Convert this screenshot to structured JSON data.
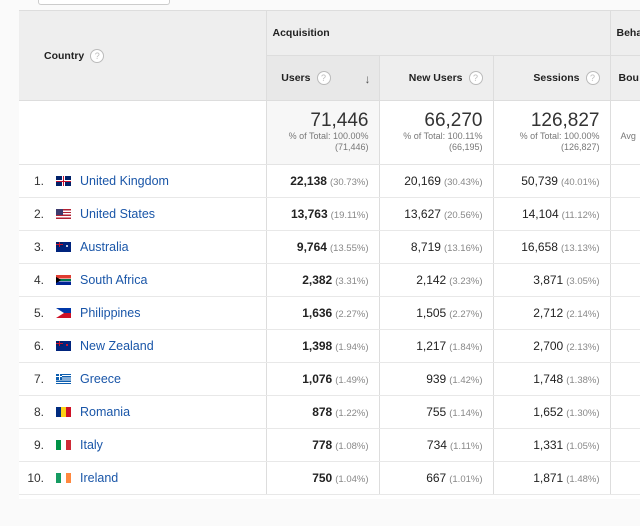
{
  "header": {
    "country": "Country",
    "acquisition": "Acquisition",
    "behavior": "Beha",
    "users": "Users",
    "new_users": "New Users",
    "sessions": "Sessions",
    "bounce": "Bou",
    "help": "?",
    "sort_arrow": "↓"
  },
  "totals": {
    "users": {
      "value": "71,446",
      "pct": "% of Total: 100.00%",
      "abs": "(71,446)"
    },
    "new_users": {
      "value": "66,270",
      "pct": "% of Total: 100.11%",
      "abs": "(66,195)"
    },
    "sessions": {
      "value": "126,827",
      "pct": "% of Total: 100.00%",
      "abs": "(126,827)"
    },
    "bounce_label": "Avg"
  },
  "rows": [
    {
      "idx": "1.",
      "country": "United Kingdom",
      "flag": "gb",
      "users": "22,138",
      "users_pct": "(30.73%)",
      "new": "20,169",
      "new_pct": "(30.43%)",
      "sess": "50,739",
      "sess_pct": "(40.01%)"
    },
    {
      "idx": "2.",
      "country": "United States",
      "flag": "us",
      "users": "13,763",
      "users_pct": "(19.11%)",
      "new": "13,627",
      "new_pct": "(20.56%)",
      "sess": "14,104",
      "sess_pct": "(11.12%)"
    },
    {
      "idx": "3.",
      "country": "Australia",
      "flag": "au",
      "users": "9,764",
      "users_pct": "(13.55%)",
      "new": "8,719",
      "new_pct": "(13.16%)",
      "sess": "16,658",
      "sess_pct": "(13.13%)"
    },
    {
      "idx": "4.",
      "country": "South Africa",
      "flag": "za",
      "users": "2,382",
      "users_pct": "(3.31%)",
      "new": "2,142",
      "new_pct": "(3.23%)",
      "sess": "3,871",
      "sess_pct": "(3.05%)"
    },
    {
      "idx": "5.",
      "country": "Philippines",
      "flag": "ph",
      "users": "1,636",
      "users_pct": "(2.27%)",
      "new": "1,505",
      "new_pct": "(2.27%)",
      "sess": "2,712",
      "sess_pct": "(2.14%)"
    },
    {
      "idx": "6.",
      "country": "New Zealand",
      "flag": "nz",
      "users": "1,398",
      "users_pct": "(1.94%)",
      "new": "1,217",
      "new_pct": "(1.84%)",
      "sess": "2,700",
      "sess_pct": "(2.13%)"
    },
    {
      "idx": "7.",
      "country": "Greece",
      "flag": "gr",
      "users": "1,076",
      "users_pct": "(1.49%)",
      "new": "939",
      "new_pct": "(1.42%)",
      "sess": "1,748",
      "sess_pct": "(1.38%)"
    },
    {
      "idx": "8.",
      "country": "Romania",
      "flag": "ro",
      "users": "878",
      "users_pct": "(1.22%)",
      "new": "755",
      "new_pct": "(1.14%)",
      "sess": "1,652",
      "sess_pct": "(1.30%)"
    },
    {
      "idx": "9.",
      "country": "Italy",
      "flag": "it",
      "users": "778",
      "users_pct": "(1.08%)",
      "new": "734",
      "new_pct": "(1.11%)",
      "sess": "1,331",
      "sess_pct": "(1.05%)"
    },
    {
      "idx": "10.",
      "country": "Ireland",
      "flag": "ie",
      "users": "750",
      "users_pct": "(1.04%)",
      "new": "667",
      "new_pct": "(1.01%)",
      "sess": "1,871",
      "sess_pct": "(1.48%)"
    }
  ],
  "colors": {
    "link": "#1a56a8",
    "header_bg": "#eeeeee",
    "border": "#dddddd"
  }
}
